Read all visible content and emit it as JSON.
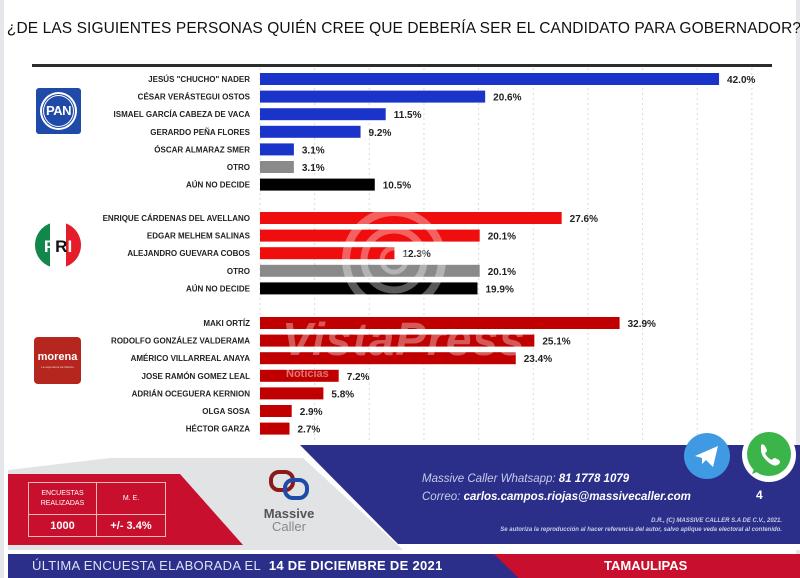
{
  "title": "¿DE LAS SIGUIENTES PERSONAS QUIÉN CREE QUE DEBERÍA SER EL CANDIDATO PARA GOBERNADOR?",
  "colors": {
    "pan": "#1a33c8",
    "pri": "#ef0d0d",
    "morena": "#c00000",
    "otro": "#8a8a8a",
    "undecided": "#000000",
    "navy": "#2b2f8a",
    "red": "#c8102e"
  },
  "chart_data": {
    "type": "bar",
    "orientation": "horizontal",
    "title": "¿DE LAS SIGUIENTES PERSONAS QUIÉN CREE QUE DEBERÍA SER EL CANDIDATO PARA GOBERNADOR?",
    "xlabel": "",
    "ylabel": "",
    "xlim": [
      0,
      45
    ],
    "grid": true,
    "unit": "%",
    "groups": [
      {
        "party": "PAN",
        "logo_icon": "pan-logo",
        "items": [
          {
            "label": "JESÚS \"CHUCHO\" NADER",
            "value": 42.0,
            "color_key": "pan"
          },
          {
            "label": "CÉSAR VERÁSTEGUI OSTOS",
            "value": 20.6,
            "color_key": "pan"
          },
          {
            "label": "ISMAEL GARCÍA CABEZA DE VACA",
            "value": 11.5,
            "color_key": "pan"
          },
          {
            "label": "GERARDO PEÑA FLORES",
            "value": 9.2,
            "color_key": "pan"
          },
          {
            "label": "ÓSCAR ALMARAZ SMER",
            "value": 3.1,
            "color_key": "pan"
          },
          {
            "label": "OTRO",
            "value": 3.1,
            "color_key": "otro"
          },
          {
            "label": "AÚN NO DECIDE",
            "value": 10.5,
            "color_key": "undecided"
          }
        ]
      },
      {
        "party": "PRI",
        "logo_icon": "pri-logo",
        "items": [
          {
            "label": "ENRIQUE CÁRDENAS DEL AVELLANO",
            "value": 27.6,
            "color_key": "pri"
          },
          {
            "label": "EDGAR MELHEM SALINAS",
            "value": 20.1,
            "color_key": "pri"
          },
          {
            "label": "ALEJANDRO GUEVARA COBOS",
            "value": 12.3,
            "color_key": "pri"
          },
          {
            "label": "OTRO",
            "value": 20.1,
            "color_key": "otro"
          },
          {
            "label": "AÚN NO DECIDE",
            "value": 19.9,
            "color_key": "undecided"
          }
        ]
      },
      {
        "party": "MORENA",
        "logo_icon": "morena-logo",
        "items": [
          {
            "label": "MAKI ORTÍZ",
            "value": 32.9,
            "color_key": "morena"
          },
          {
            "label": "RODOLFO GONZÁLEZ VALDERAMA",
            "value": 25.1,
            "color_key": "morena"
          },
          {
            "label": "AMÉRICO VILLARREAL ANAYA",
            "value": 23.4,
            "color_key": "morena"
          },
          {
            "label": "JOSE RAMÓN GOMEZ LEAL",
            "value": 7.2,
            "color_key": "morena"
          },
          {
            "label": "ADRIÁN OCEGUERA KERNION",
            "value": 5.8,
            "color_key": "morena"
          },
          {
            "label": "OLGA SOSA",
            "value": 2.9,
            "color_key": "morena"
          },
          {
            "label": "HÉCTOR GARZA",
            "value": 2.7,
            "color_key": "morena"
          }
        ]
      }
    ]
  },
  "logos": {
    "pan": "PAN",
    "pri_p": "P",
    "pri_r": "R",
    "pri_i": "I",
    "morena": "morena",
    "morena_sub": "La esperanza de México"
  },
  "watermark": {
    "text": "VistaPress",
    "sub": "Noticias"
  },
  "stats": {
    "surveys_header": "ENCUESTAS REALIZADAS",
    "margin_header": "M. E.",
    "surveys_value": "1000",
    "margin_value": "+/- 3.4%"
  },
  "brand": {
    "name_line1": "Massive",
    "name_line2": "Caller"
  },
  "contact": {
    "whatsapp_label": "Massive Caller Whatsapp:",
    "whatsapp_value": "81 1778 1079",
    "email_label": "Correo:",
    "email_value": "carlos.campos.riojas@massivecaller.com"
  },
  "page_number": "4",
  "copyright": {
    "line1": "D.R., (C) MASSIVE CALLER S.A DE C.V., 2021.",
    "line2": "Se autoriza la reproducción al hacer referencia del autor, salvo aplique veda electoral al contenido."
  },
  "bottom": {
    "prefix": "ÚLTIMA ENCUESTA ELABORADA EL",
    "date": "14 DE DICIEMBRE DE 2021",
    "state": "TAMAULIPAS"
  },
  "social": {
    "telegram": "telegram-icon",
    "whatsapp": "whatsapp-icon"
  }
}
